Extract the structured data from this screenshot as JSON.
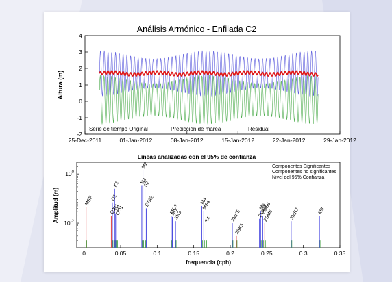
{
  "colors": {
    "original": "#3b3bd6",
    "predicted": "#2e9e2e",
    "residual": "#e01818",
    "significant": "#4a4ae0",
    "not_significant": "#e04848",
    "conf_level": "#3fa03f"
  },
  "chart_data": [
    {
      "type": "line",
      "title": "Análisis Armónico - Enfilada C2",
      "xlabel": "",
      "ylabel": "Altura (m)",
      "x_ticks": [
        "25-Dec-2011",
        "01-Jan-2012",
        "08-Jan-2012",
        "15-Jan-2012",
        "22-Jan-2012",
        "29-Jan-2012"
      ],
      "xlim": [
        "2011-12-25",
        "2012-01-29"
      ],
      "ylim": [
        -2,
        4
      ],
      "y_ticks": [
        -2,
        -1,
        0,
        1,
        2,
        3,
        4
      ],
      "grid": false,
      "legend_inline": true,
      "series": [
        {
          "name": "Serie de tiempo Original",
          "mean": 1.7,
          "amplitude_range": [
            0.9,
            1.4
          ],
          "period_hours": 12.42,
          "x_start": "2011-12-27",
          "x_end": "2012-01-26"
        },
        {
          "name": "Predicción de marea",
          "mean": 0.1,
          "amplitude_range": [
            1.0,
            1.5
          ],
          "period_hours": 12.42,
          "x_start": "2011-12-27",
          "x_end": "2012-01-26"
        },
        {
          "name": "Residual",
          "mean": 1.7,
          "amplitude": 0.1,
          "x_start": "2011-12-27",
          "x_end": "2012-01-26"
        }
      ]
    },
    {
      "type": "bar",
      "title": "Líneas analizadas con el 95% de confianza",
      "xlabel": "frequencia (cph)",
      "ylabel": "Amplitud (m)",
      "xlim": [
        -0.01,
        0.35
      ],
      "x_ticks": [
        "0",
        "0.05",
        "0.1",
        "0.15",
        "0.2",
        "0.25",
        "0.3",
        "0.35"
      ],
      "yscale": "log",
      "ylim": [
        0.001,
        3
      ],
      "y_ticks": [
        "10^-2",
        "10^0"
      ],
      "legend": {
        "placement": "top-right",
        "entries": [
          "Componentes Significantes",
          "Componentes no significantes",
          "Nivel del 95% Confianza"
        ]
      },
      "constituents": [
        {
          "name": "MSF",
          "frequency": 0.0028,
          "amplitude": 0.045,
          "significant": false
        },
        {
          "name": "O1",
          "frequency": 0.0387,
          "amplitude": 0.07,
          "significant": true
        },
        {
          "name": "Q1",
          "frequency": 0.0373,
          "amplitude": 0.02,
          "significant": false
        },
        {
          "name": "K1",
          "frequency": 0.0418,
          "amplitude": 0.25,
          "significant": true
        },
        {
          "name": "P1",
          "frequency": 0.0416,
          "amplitude": 0.03,
          "significant": true
        },
        {
          "name": "J1",
          "frequency": 0.0432,
          "amplitude": 0.025,
          "significant": true
        },
        {
          "name": "OO1",
          "frequency": 0.0448,
          "amplitude": 0.018,
          "significant": true
        },
        {
          "name": "M2",
          "frequency": 0.0805,
          "amplitude": 1.4,
          "significant": true
        },
        {
          "name": "N2",
          "frequency": 0.079,
          "amplitude": 0.33,
          "significant": true
        },
        {
          "name": "S2",
          "frequency": 0.0833,
          "amplitude": 0.25,
          "significant": true
        },
        {
          "name": "ETA2",
          "frequency": 0.0851,
          "amplitude": 0.04,
          "significant": true
        },
        {
          "name": "MO3",
          "frequency": 0.1192,
          "amplitude": 0.02,
          "significant": true
        },
        {
          "name": "M3",
          "frequency": 0.1208,
          "amplitude": 0.018,
          "significant": true
        },
        {
          "name": "SK3",
          "frequency": 0.1251,
          "amplitude": 0.012,
          "significant": true
        },
        {
          "name": "M4",
          "frequency": 0.161,
          "amplitude": 0.05,
          "significant": true
        },
        {
          "name": "MS4",
          "frequency": 0.1638,
          "amplitude": 0.03,
          "significant": true
        },
        {
          "name": "S4",
          "frequency": 0.1667,
          "amplitude": 0.009,
          "significant": false
        },
        {
          "name": "2MK5",
          "frequency": 0.2028,
          "amplitude": 0.01,
          "significant": true
        },
        {
          "name": "2SK5",
          "frequency": 0.2084,
          "amplitude": 0.003,
          "significant": false
        },
        {
          "name": "M6",
          "frequency": 0.2415,
          "amplitude": 0.03,
          "significant": true
        },
        {
          "name": "2MS6",
          "frequency": 0.2444,
          "amplitude": 0.02,
          "significant": true
        },
        {
          "name": "2MN6",
          "frequency": 0.24,
          "amplitude": 0.015,
          "significant": true
        },
        {
          "name": "2SM6",
          "frequency": 0.2472,
          "amplitude": 0.01,
          "significant": false
        },
        {
          "name": "3MK7",
          "frequency": 0.2833,
          "amplitude": 0.012,
          "significant": true
        },
        {
          "name": "M8",
          "frequency": 0.322,
          "amplitude": 0.02,
          "significant": true
        }
      ],
      "confidence_level": 0.002
    }
  ]
}
